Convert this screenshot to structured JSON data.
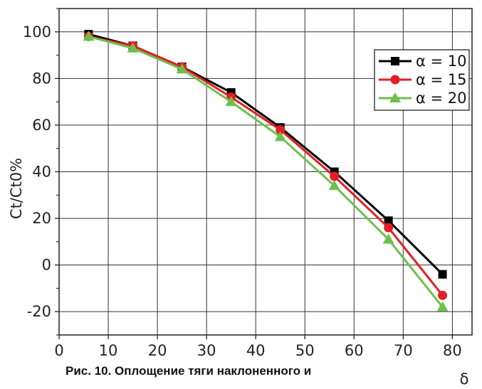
{
  "chart_data": {
    "type": "line",
    "title": "",
    "xlabel": "δ",
    "ylabel": "Ct/Ct0%",
    "xlim": [
      0,
      84
    ],
    "ylim": [
      -30,
      110
    ],
    "xticks": [
      "0",
      "10",
      "20",
      "30",
      "40",
      "50",
      "60",
      "70",
      "80"
    ],
    "yticks": [
      "-20",
      "0",
      "20",
      "40",
      "60",
      "80",
      "100"
    ],
    "grid": true,
    "legend_position": "top-right",
    "series": [
      {
        "name": "α = 10",
        "color": "#000000",
        "marker": "square",
        "x": [
          6,
          15,
          25,
          35,
          45,
          56,
          67,
          78
        ],
        "y": [
          99,
          94,
          85,
          74,
          59,
          40,
          19,
          -4
        ]
      },
      {
        "name": "α = 15",
        "color": "#e31e24",
        "marker": "circle",
        "x": [
          6,
          15,
          25,
          35,
          45,
          56,
          67,
          78
        ],
        "y": [
          98,
          94,
          85,
          72,
          58,
          38,
          16,
          -13
        ]
      },
      {
        "name": "α = 20",
        "color": "#6dbf4b",
        "marker": "triangle",
        "x": [
          6,
          15,
          25,
          35,
          45,
          56,
          67,
          78
        ],
        "y": [
          98,
          93,
          84,
          70,
          55,
          34,
          11,
          -18
        ]
      }
    ]
  },
  "caption": "Рис. 10. Оплощение тяги наклоненного и"
}
